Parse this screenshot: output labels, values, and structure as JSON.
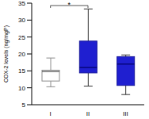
{
  "chart_data": {
    "type": "box",
    "y_label": "COX-2 levels (ng/mgP)",
    "categories": [
      "I",
      "II",
      "III"
    ],
    "whisker_low": [
      10.3,
      10.5,
      8.0
    ],
    "q1": [
      12.0,
      14.4,
      10.7
    ],
    "median": [
      14.8,
      16.0,
      17.0
    ],
    "q3": [
      15.2,
      23.8,
      19.2
    ],
    "whisker_high": [
      18.8,
      33.3,
      19.7
    ],
    "colors": [
      "#ffffff",
      "#1f1fd0",
      "#1f1fd0"
    ],
    "ylim": [
      5,
      35
    ],
    "yticks": [
      5,
      10,
      15,
      20,
      25,
      30,
      35
    ],
    "annotations": [
      {
        "text": "*",
        "from": "I",
        "to": "II"
      }
    ]
  }
}
